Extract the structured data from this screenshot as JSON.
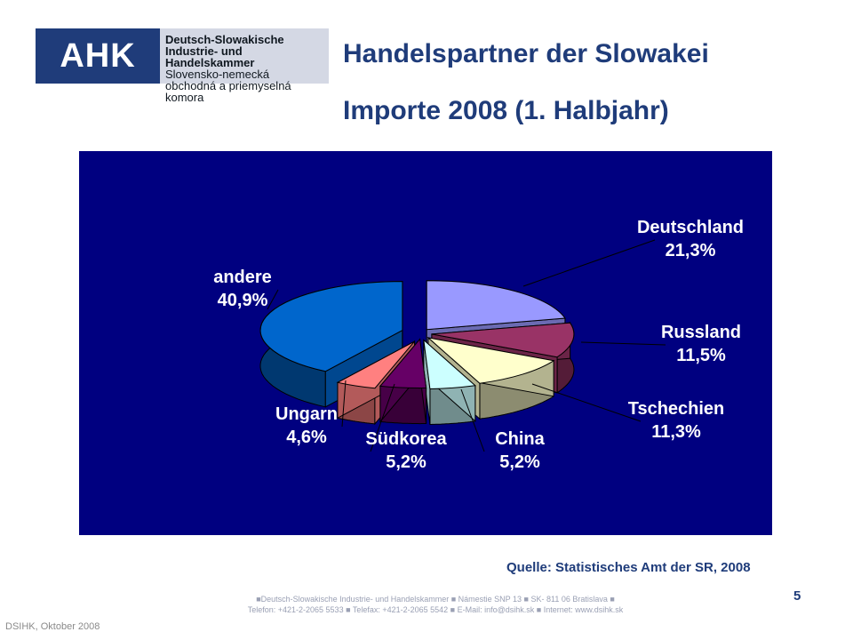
{
  "logo": {
    "abbr": "AHK",
    "line1": "Deutsch-Slowakische",
    "line2": "Industrie- und Handelskammer",
    "line3": "Slovensko-nemecká",
    "line4": "obchodná a priemyselná komora"
  },
  "slide": {
    "title": "Handelspartner der Slowakei",
    "subtitle": "Importe 2008 (1. Halbjahr)",
    "source": "Quelle:  Statistisches Amt der SR, 2008",
    "page_number": "5",
    "footer_line1": "■Deutsch-Slowakische Industrie- und Handelskammer ■ Námestie SNP 13 ■ SK- 811 06 Bratislava ■",
    "footer_line2": "Telefon: +421-2-2065 5533 ■ Telefax: +421-2-2065 5542 ■ E-Mail: info@dsihk.sk ■ Internet: www.dsihk.sk",
    "footer_left": "DSIHK, Oktober 2008"
  },
  "chart_data": {
    "type": "pie",
    "title": "",
    "background": "#000080",
    "slices": [
      {
        "name": "Deutschland",
        "value": 21.3,
        "label": "21,3%",
        "color": "#9999ff"
      },
      {
        "name": "Russland",
        "value": 11.5,
        "label": "11,5%",
        "color": "#993366"
      },
      {
        "name": "Tschechien",
        "value": 11.3,
        "label": "11,3%",
        "color": "#ffffcc"
      },
      {
        "name": "China",
        "value": 5.2,
        "label": "5,2%",
        "color": "#ccffff"
      },
      {
        "name": "Südkorea",
        "value": 5.2,
        "label": "5,2%",
        "color": "#660066"
      },
      {
        "name": "Ungarn",
        "value": 4.6,
        "label": "4,6%",
        "color": "#ff8080"
      },
      {
        "name": "andere",
        "value": 40.9,
        "label": "40,9%",
        "color": "#0066cc"
      }
    ]
  }
}
